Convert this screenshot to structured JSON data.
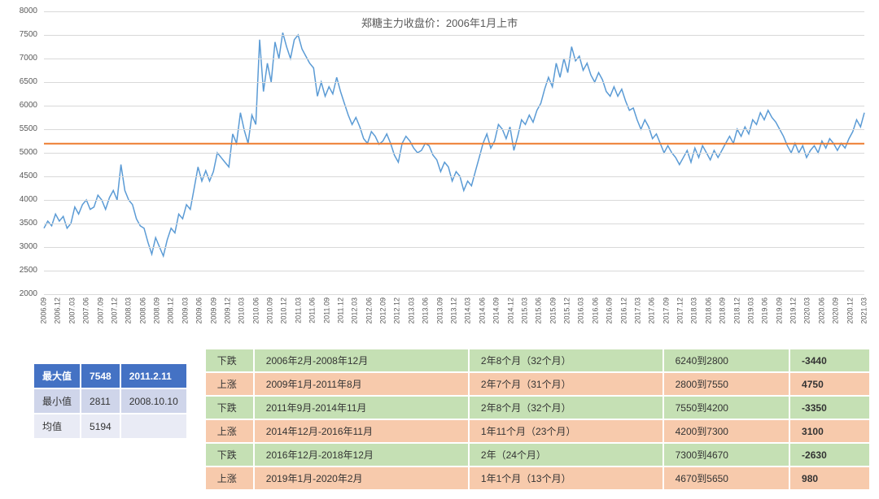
{
  "chart": {
    "title": "郑糖主力收盘价：2006年1月上市",
    "title_fontsize": 13,
    "title_color": "#595959",
    "background_color": "#ffffff",
    "grid_color": "#d9d9d9",
    "line_color": "#5b9bd5",
    "line_width": 1.5,
    "mean_line_color": "#ed7d31",
    "mean_line_width": 2,
    "mean_value": 5194,
    "ylim": [
      2000,
      8000
    ],
    "ytick_step": 500,
    "yticks": [
      2000,
      2500,
      3000,
      3500,
      4000,
      4500,
      5000,
      5500,
      6000,
      6500,
      7000,
      7500,
      8000
    ],
    "axis_label_fontsize": 10,
    "axis_label_color": "#595959",
    "x_labels": [
      "2006.09",
      "2006.12",
      "2007.03",
      "2007.06",
      "2007.09",
      "2007.12",
      "2008.03",
      "2008.06",
      "2008.09",
      "2008.12",
      "2009.03",
      "2009.06",
      "2009.09",
      "2009.12",
      "2010.03",
      "2010.06",
      "2010.09",
      "2010.12",
      "2011.03",
      "2011.06",
      "2011.09",
      "2011.12",
      "2012.03",
      "2012.06",
      "2012.09",
      "2012.12",
      "2013.03",
      "2013.06",
      "2013.09",
      "2013.12",
      "2014.03",
      "2014.06",
      "2014.09",
      "2014.12",
      "2015.03",
      "2015.06",
      "2015.09",
      "2015.12",
      "2016.03",
      "2016.06",
      "2016.09",
      "2016.12",
      "2017.03",
      "2017.06",
      "2017.09",
      "2017.12",
      "2018.03",
      "2018.06",
      "2018.09",
      "2018.12",
      "2019.03",
      "2019.06",
      "2019.09",
      "2019.12",
      "2020.03",
      "2020.06",
      "2020.09",
      "2020.12",
      "2021.03"
    ],
    "series": [
      3400,
      3550,
      3450,
      3700,
      3550,
      3650,
      3400,
      3500,
      3850,
      3700,
      3900,
      4000,
      3800,
      3850,
      4100,
      4000,
      3800,
      4050,
      4200,
      4000,
      4750,
      4200,
      4000,
      3900,
      3600,
      3450,
      3400,
      3100,
      2850,
      3200,
      3000,
      2811,
      3150,
      3400,
      3300,
      3700,
      3600,
      3900,
      3800,
      4250,
      4700,
      4400,
      4620,
      4400,
      4600,
      5000,
      4900,
      4800,
      4700,
      5400,
      5200,
      5850,
      5480,
      5200,
      5800,
      5600,
      7400,
      6300,
      6900,
      6500,
      7350,
      7000,
      7548,
      7250,
      7000,
      7400,
      7500,
      7200,
      7050,
      6900,
      6800,
      6200,
      6500,
      6200,
      6400,
      6250,
      6600,
      6300,
      6050,
      5800,
      5600,
      5750,
      5550,
      5300,
      5200,
      5450,
      5350,
      5180,
      5250,
      5400,
      5200,
      4950,
      4800,
      5200,
      5350,
      5250,
      5100,
      5000,
      5050,
      5200,
      5150,
      4950,
      4850,
      4600,
      4800,
      4700,
      4400,
      4600,
      4500,
      4200,
      4400,
      4300,
      4600,
      4900,
      5200,
      5400,
      5100,
      5250,
      5600,
      5500,
      5300,
      5550,
      5050,
      5350,
      5700,
      5600,
      5800,
      5650,
      5900,
      6050,
      6350,
      6600,
      6400,
      6900,
      6600,
      7000,
      6700,
      7250,
      6950,
      7050,
      6750,
      6900,
      6650,
      6500,
      6700,
      6550,
      6300,
      6200,
      6400,
      6200,
      6350,
      6100,
      5900,
      5950,
      5700,
      5500,
      5700,
      5550,
      5300,
      5400,
      5200,
      5000,
      5150,
      5000,
      4900,
      4750,
      4900,
      5050,
      4800,
      5100,
      4900,
      5150,
      5000,
      4850,
      5050,
      4900,
      5050,
      5200,
      5350,
      5200,
      5500,
      5350,
      5550,
      5400,
      5700,
      5600,
      5850,
      5700,
      5900,
      5750,
      5650,
      5500,
      5350,
      5150,
      5000,
      5200,
      5000,
      5150,
      4900,
      5050,
      5150,
      5000,
      5250,
      5100,
      5300,
      5200,
      5050,
      5200,
      5100,
      5300,
      5450,
      5700,
      5550,
      5850
    ]
  },
  "stats": {
    "header": {
      "label": "最大值",
      "value": "7548",
      "date": "2011.2.11"
    },
    "min": {
      "label": "最小值",
      "value": "2811",
      "date": "2008.10.10"
    },
    "mean": {
      "label": "均值",
      "value": "5194",
      "date": ""
    }
  },
  "cycles": [
    {
      "dir": "下跌",
      "period": "2006年2月-2008年12月",
      "duration": "2年8个月（32个月）",
      "range": "6240到2800",
      "change": "-3440",
      "type": "down"
    },
    {
      "dir": "上涨",
      "period": "2009年1月-2011年8月",
      "duration": "2年7个月（31个月）",
      "range": "2800到7550",
      "change": "4750",
      "type": "up"
    },
    {
      "dir": "下跌",
      "period": "2011年9月-2014年11月",
      "duration": "2年8个月（32个月）",
      "range": "7550到4200",
      "change": "-3350",
      "type": "down"
    },
    {
      "dir": "上涨",
      "period": "2014年12月-2016年11月",
      "duration": "1年11个月（23个月）",
      "range": "4200到7300",
      "change": "3100",
      "type": "up"
    },
    {
      "dir": "下跌",
      "period": "2016年12月-2018年12月",
      "duration": "2年（24个月）",
      "range": "7300到4670",
      "change": "-2630",
      "type": "down"
    },
    {
      "dir": "上涨",
      "period": "2019年1月-2020年2月",
      "duration": "1年1个月（13个月）",
      "range": "4670到5650",
      "change": "980",
      "type": "up"
    }
  ],
  "colors": {
    "stats_header_bg": "#4472c4",
    "stats_header_fg": "#ffffff",
    "stats_row_a_bg": "#cfd5ea",
    "stats_row_b_bg": "#e9ebf5",
    "cycle_down_bg": "#c5e0b4",
    "cycle_up_bg": "#f7caac"
  }
}
